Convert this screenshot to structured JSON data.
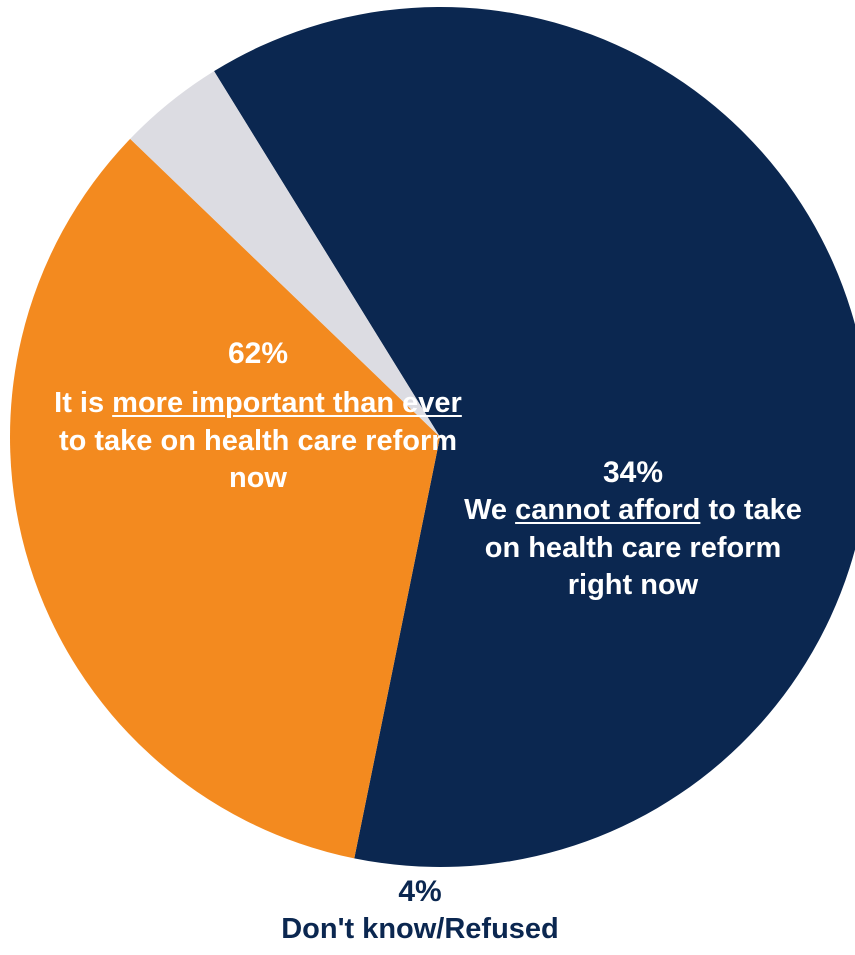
{
  "chart_data": {
    "type": "pie",
    "title": "",
    "slices": [
      {
        "value": 62,
        "pct_label": "62%",
        "label_parts": [
          {
            "text": "It is ",
            "u": false
          },
          {
            "text": "more important than ever",
            "u": true
          },
          {
            "text": " to take on health care reform now",
            "u": false
          }
        ],
        "color": "#0b2750",
        "text_color": "#ffffff"
      },
      {
        "value": 34,
        "pct_label": "34%",
        "label_parts": [
          {
            "text": "We ",
            "u": false
          },
          {
            "text": "cannot afford",
            "u": true
          },
          {
            "text": " to take on health care reform right now",
            "u": false
          }
        ],
        "color": "#f38a1f",
        "text_color": "#ffffff"
      },
      {
        "value": 4,
        "pct_label": "4%",
        "label_parts": [
          {
            "text": "Don't know/Refused",
            "u": false
          }
        ],
        "color": "#dcdce2",
        "text_color": "#0b2750"
      }
    ]
  }
}
